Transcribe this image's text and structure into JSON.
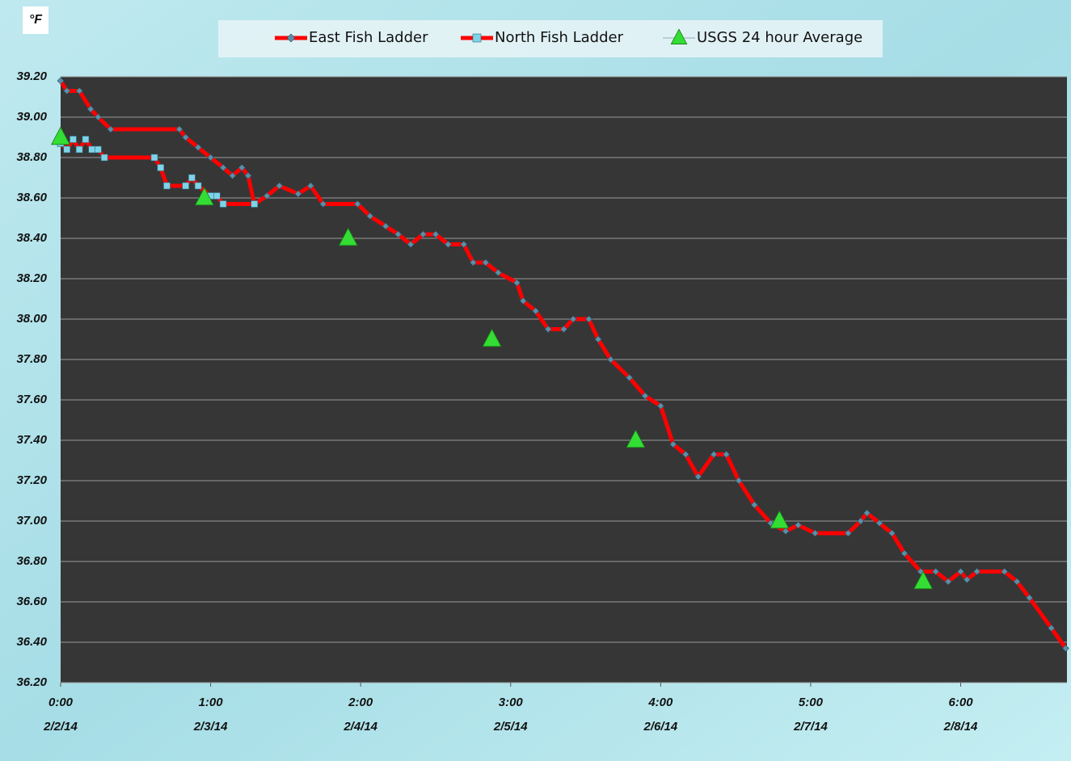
{
  "chart_data": {
    "type": "line",
    "y_label": "°F",
    "xlim": [
      0,
      161
    ],
    "ylim": [
      36.2,
      39.2
    ],
    "grid": true,
    "legend": "top",
    "xticks": [
      {
        "value": 0,
        "label": "0:00"
      },
      {
        "value": 24,
        "label": "1:00"
      },
      {
        "value": 48,
        "label": "2:00"
      },
      {
        "value": 72,
        "label": "3:00"
      },
      {
        "value": 96,
        "label": "4:00"
      },
      {
        "value": 120,
        "label": "5:00"
      },
      {
        "value": 144,
        "label": "6:00"
      }
    ],
    "xtick_dates": [
      "2/2/14",
      "2/3/14",
      "2/4/14",
      "2/5/14",
      "2/6/14",
      "2/7/14",
      "2/8/14"
    ],
    "yticks": [
      {
        "value": 36.2,
        "label": "36.20"
      },
      {
        "value": 36.4,
        "label": "36.40"
      },
      {
        "value": 36.6,
        "label": "36.60"
      },
      {
        "value": 36.8,
        "label": "36.80"
      },
      {
        "value": 37.0,
        "label": "37.00"
      },
      {
        "value": 37.2,
        "label": "37.20"
      },
      {
        "value": 37.4,
        "label": "37.40"
      },
      {
        "value": 37.6,
        "label": "37.60"
      },
      {
        "value": 37.8,
        "label": "37.80"
      },
      {
        "value": 38.0,
        "label": "38.00"
      },
      {
        "value": 38.2,
        "label": "38.20"
      },
      {
        "value": 38.4,
        "label": "38.40"
      },
      {
        "value": 38.6,
        "label": "38.60"
      },
      {
        "value": 38.8,
        "label": "38.80"
      },
      {
        "value": 39.0,
        "label": "39.00"
      },
      {
        "value": 39.2,
        "label": "39.20"
      }
    ],
    "series": [
      {
        "name": "East Fish Ladder",
        "color": "#ff0000",
        "marker": "diamond",
        "marker_color": "#5b8fa8",
        "x": [
          0,
          1,
          3,
          4.8,
          6,
          8,
          19,
          20,
          22,
          24,
          26,
          27.5,
          29,
          30,
          31,
          33,
          35,
          38,
          40,
          42,
          47.5,
          49.5,
          52,
          54,
          56,
          58,
          60,
          62,
          64.5,
          66,
          68,
          70,
          73,
          74,
          76,
          78,
          80.5,
          82,
          84.5,
          86,
          88,
          91,
          93.5,
          96,
          98,
          100,
          102,
          104.5,
          106.5,
          108.5,
          111,
          113.6,
          116,
          118,
          120.7,
          126,
          128,
          129,
          131,
          133,
          135,
          137.6,
          140,
          142,
          144,
          145,
          146.6,
          151,
          153,
          155,
          158.5,
          160.8
        ],
        "values": [
          39.18,
          39.13,
          39.13,
          39.04,
          39.0,
          38.94,
          38.94,
          38.9,
          38.85,
          38.8,
          38.75,
          38.71,
          38.75,
          38.71,
          38.57,
          38.61,
          38.66,
          38.62,
          38.66,
          38.57,
          38.57,
          38.51,
          38.46,
          38.42,
          38.37,
          38.42,
          38.42,
          38.37,
          38.37,
          38.28,
          38.28,
          38.23,
          38.18,
          38.09,
          38.04,
          37.95,
          37.95,
          38.0,
          38.0,
          37.9,
          37.8,
          37.71,
          37.62,
          37.57,
          37.38,
          37.33,
          37.22,
          37.33,
          37.33,
          37.2,
          37.08,
          36.99,
          36.95,
          36.98,
          36.94,
          36.94,
          37.0,
          37.04,
          36.99,
          36.94,
          36.84,
          36.75,
          36.75,
          36.7,
          36.75,
          36.71,
          36.75,
          36.75,
          36.7,
          36.62,
          36.47,
          36.37
        ]
      },
      {
        "name": "North Fish Ladder",
        "color": "#ff0000",
        "marker": "square",
        "marker_color": "#7fd3e8",
        "x": [
          0,
          1,
          2,
          3,
          4,
          5,
          6,
          7,
          15,
          16,
          17,
          20,
          21,
          22,
          24,
          25,
          26,
          31
        ],
        "values": [
          38.87,
          38.84,
          38.89,
          38.84,
          38.89,
          38.84,
          38.84,
          38.8,
          38.8,
          38.75,
          38.66,
          38.66,
          38.7,
          38.66,
          38.61,
          38.61,
          38.57,
          38.57
        ]
      },
      {
        "name": "USGS 24 hour Average",
        "color": "#33dd33",
        "marker": "triangle",
        "line": false,
        "x": [
          0,
          23,
          46,
          69,
          92,
          115,
          138
        ],
        "values": [
          38.9,
          38.6,
          38.4,
          37.9,
          37.4,
          37.0,
          36.7
        ]
      }
    ]
  }
}
